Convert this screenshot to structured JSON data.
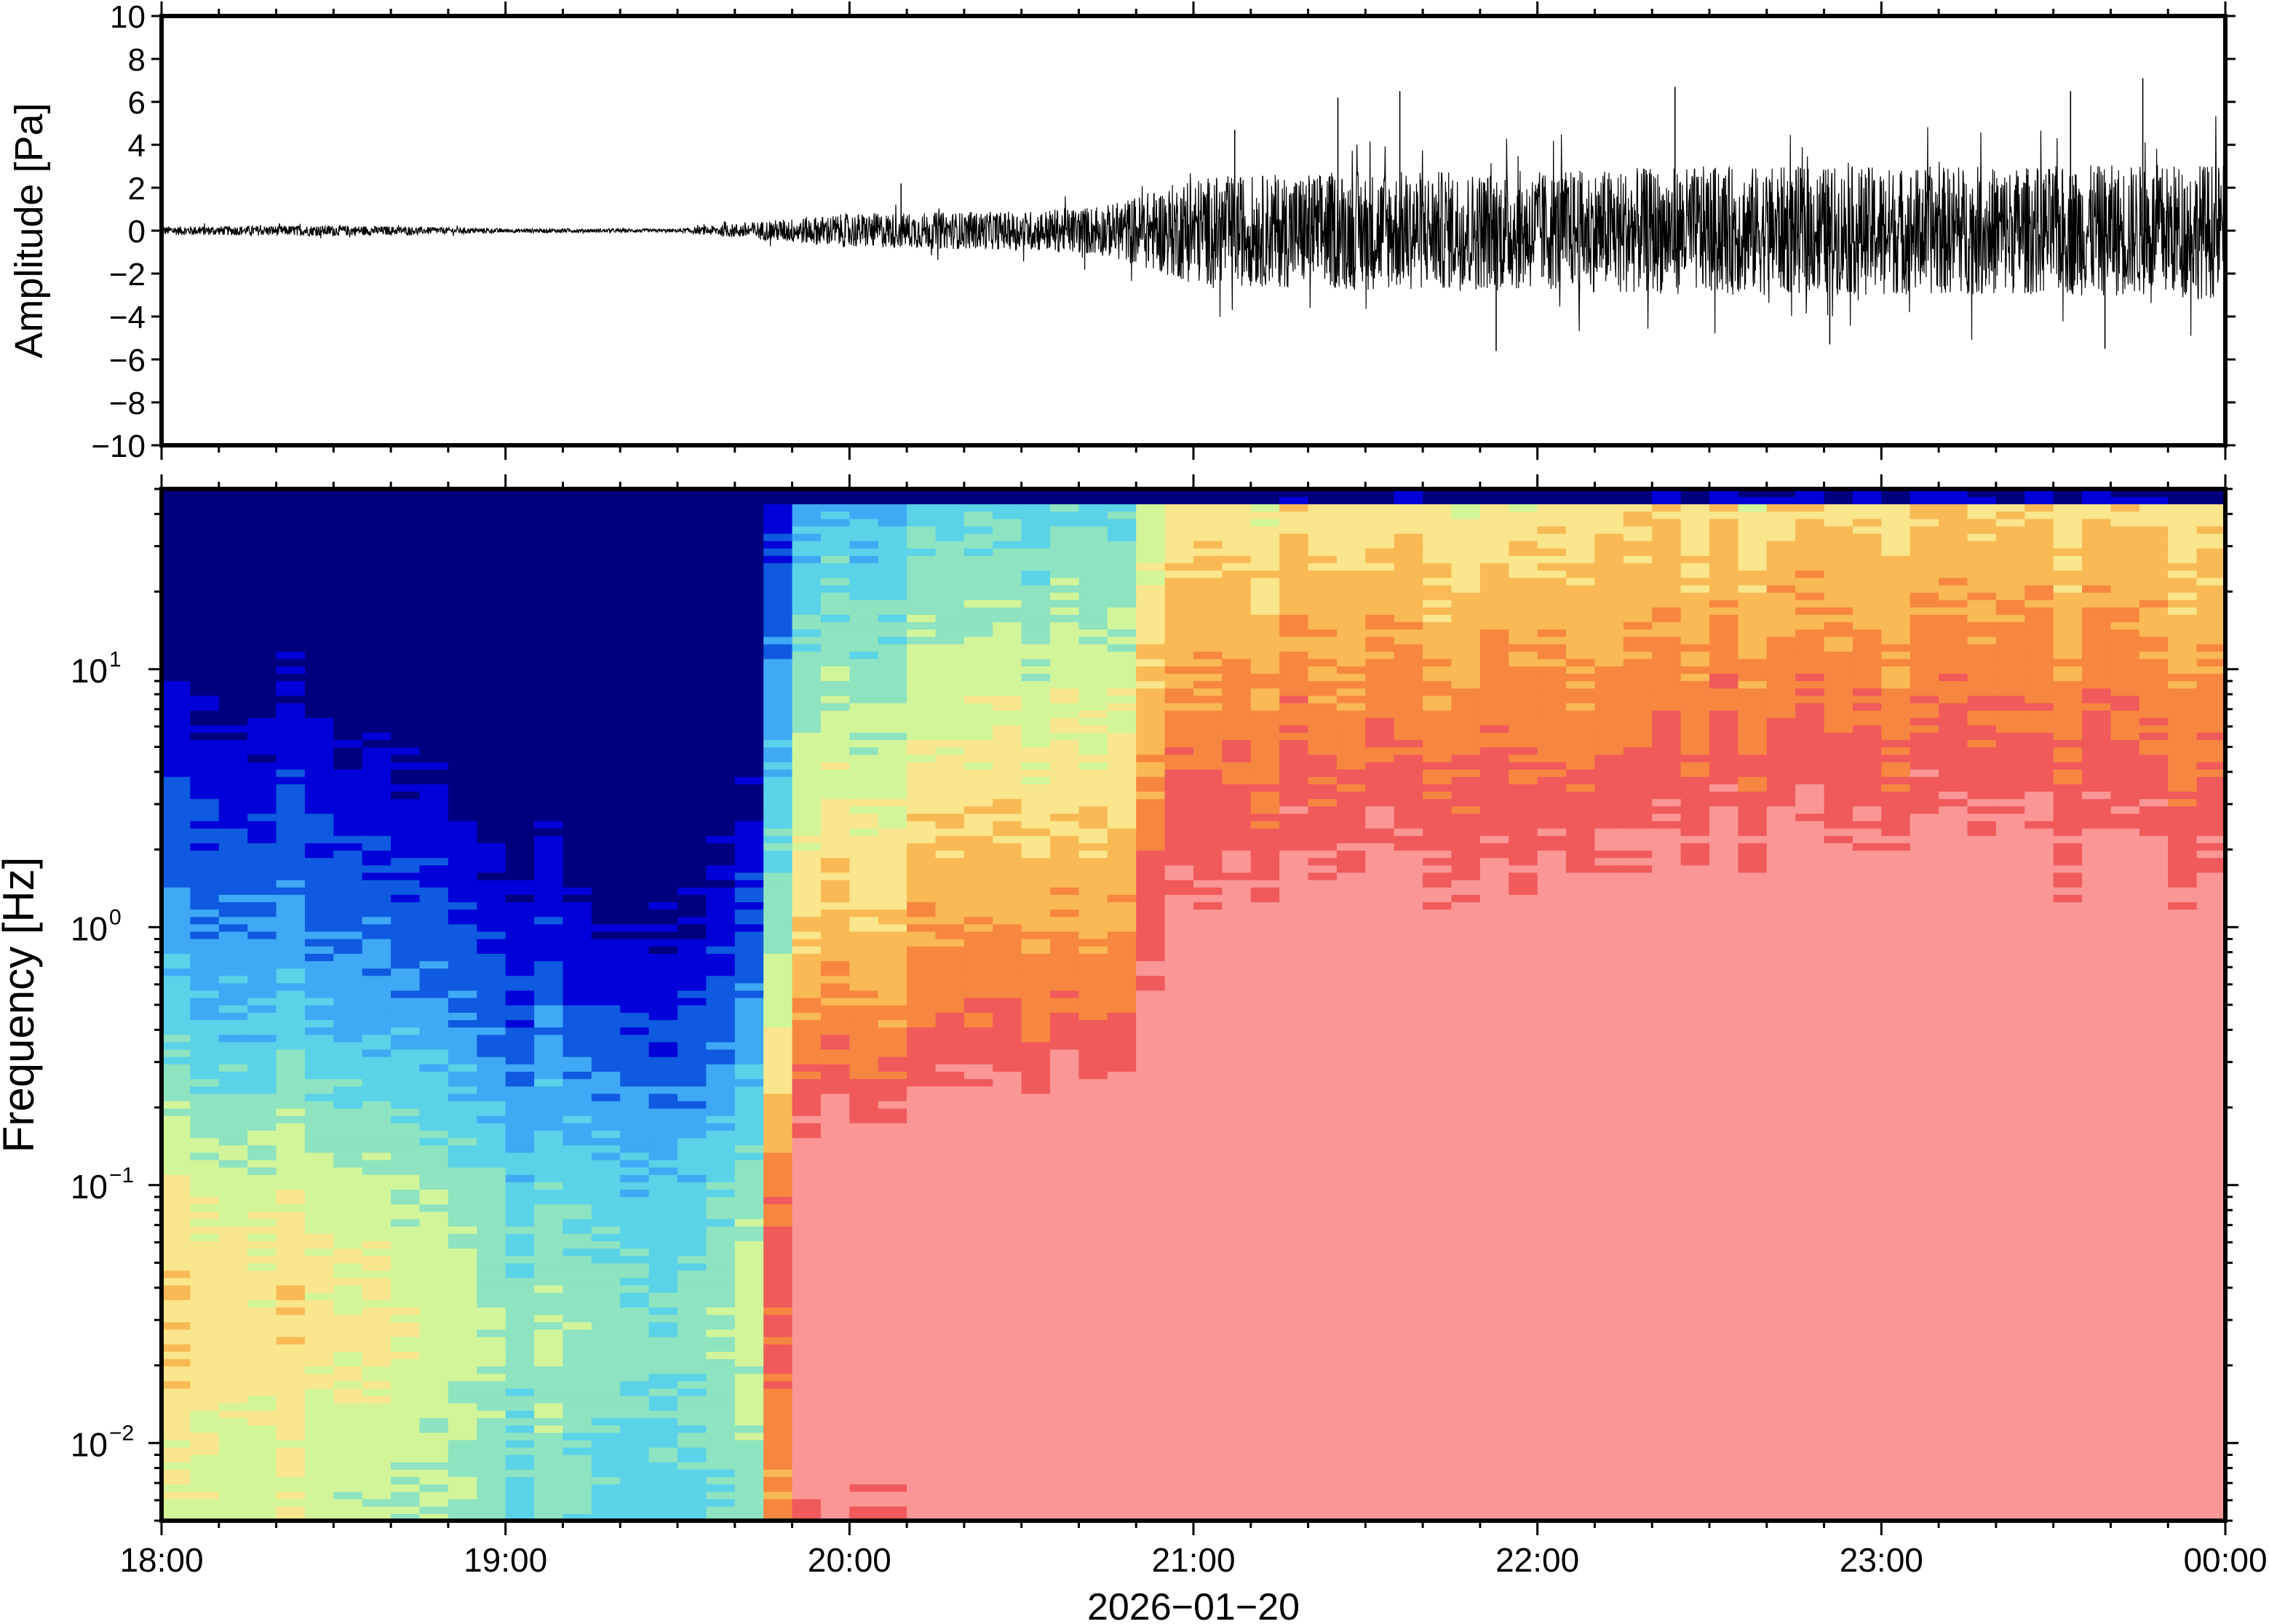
{
  "chart_data": [
    {
      "type": "line",
      "panel": "waveform",
      "ylabel": "Amplitude [Pa]",
      "ylim": [
        -10,
        10
      ],
      "yticks": [
        "10",
        "8",
        "6",
        "4",
        "2",
        "0",
        "−2",
        "−4",
        "−6",
        "−8",
        "−10"
      ],
      "ytick_values": [
        10,
        8,
        6,
        4,
        2,
        0,
        -2,
        -4,
        -6,
        -8,
        -10
      ],
      "xlim": [
        "18:00",
        "00:00"
      ],
      "series": [
        {
          "envelope_time_hours": [
            0,
            0.5,
            1.0,
            1.5,
            1.85,
            2.0,
            2.5,
            2.75,
            3.0,
            3.5,
            4.0,
            4.5,
            5.0,
            5.5,
            6.0
          ],
          "envelope_amplitude_pa": [
            0.2,
            0.25,
            0.1,
            0.08,
            0.6,
            0.8,
            0.9,
            1.2,
            2.5,
            2.8,
            2.8,
            3.0,
            3.0,
            3.0,
            3.2
          ],
          "peaks": [
            {
              "time_hours": 2.15,
              "value": 2.2
            },
            {
              "time_hours": 3.12,
              "value": 4.7
            },
            {
              "time_hours": 3.42,
              "value": 6.2
            },
            {
              "time_hours": 3.6,
              "value": 6.5
            },
            {
              "time_hours": 3.88,
              "value": -5.6
            },
            {
              "time_hours": 4.4,
              "value": 6.7
            },
            {
              "time_hours": 4.85,
              "value": -5.3
            },
            {
              "time_hours": 5.55,
              "value": 6.5
            },
            {
              "time_hours": 5.76,
              "value": 7.1
            },
            {
              "time_hours": 5.65,
              "value": -5.5
            }
          ]
        }
      ]
    },
    {
      "type": "heatmap",
      "panel": "spectrogram",
      "ylabel": "Frequency [Hz]",
      "yscale": "log",
      "ylim": [
        0.005,
        50
      ],
      "yticks": [
        {
          "base": "10",
          "exp": "1",
          "value": 10
        },
        {
          "base": "10",
          "exp": "0",
          "value": 1
        },
        {
          "base": "10",
          "exp": "−1",
          "value": 0.1
        },
        {
          "base": "10",
          "exp": "−2",
          "value": 0.01
        }
      ],
      "xlabel": "2026−01−20",
      "xticks": [
        "18:00",
        "19:00",
        "20:00",
        "21:00",
        "22:00",
        "23:00",
        "00:00"
      ],
      "colormap": [
        "#00007f",
        "#0000d8",
        "#0f5ae0",
        "#3fa9f5",
        "#5ad2e8",
        "#8ee3c0",
        "#d2f59a",
        "#fae68c",
        "#f9b954",
        "#f78640",
        "#f05a5a",
        "#fa9696"
      ],
      "noise_level_by_time": {
        "time_hours": [
          0,
          0.5,
          1.0,
          1.5,
          1.78,
          1.8,
          2.0,
          2.5,
          2.75,
          2.85,
          3.0,
          3.5,
          4.0,
          4.5,
          5.0,
          5.5,
          6.0
        ],
        "relative_power": [
          0.35,
          0.33,
          0.22,
          0.2,
          0.3,
          0.65,
          0.68,
          0.7,
          0.72,
          0.8,
          0.88,
          0.9,
          0.9,
          0.92,
          0.92,
          0.92,
          0.9
        ]
      }
    }
  ]
}
